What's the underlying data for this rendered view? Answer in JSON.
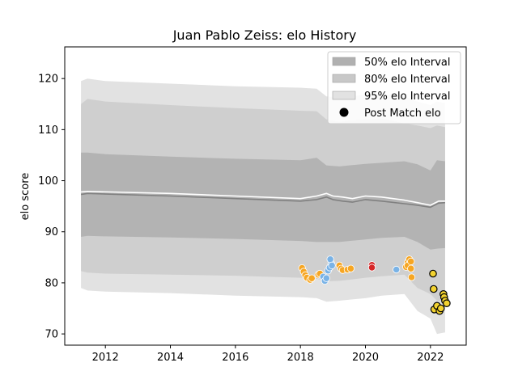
{
  "chart_data": {
    "type": "line",
    "title": "Juan Pablo Zeiss: elo History",
    "xlabel": "",
    "ylabel": "elo score",
    "xlim": [
      2010.75,
      2023.1
    ],
    "ylim": [
      67.8,
      126.2
    ],
    "x_ticks": [
      2012,
      2014,
      2016,
      2018,
      2020,
      2022
    ],
    "y_ticks": [
      70,
      80,
      90,
      100,
      110,
      120
    ],
    "grid": false,
    "legend_position": "top-right",
    "legend": [
      {
        "label": "50% elo Interval",
        "kind": "band",
        "color": "#b0b0b0"
      },
      {
        "label": "80% elo Interval",
        "kind": "band",
        "color": "#c8c8c8"
      },
      {
        "label": "95% elo Interval",
        "kind": "band",
        "color": "#e2e2e2"
      },
      {
        "label": "Post Match elo",
        "kind": "marker",
        "color": "#000000"
      }
    ],
    "band_colors": {
      "b95": "#e2e2e2",
      "b80": "#cfcfcf",
      "b50": "#b3b3b3"
    },
    "x": [
      2011.25,
      2011.45,
      2012.0,
      2014.0,
      2016.0,
      2018.0,
      2018.5,
      2018.8,
      2019.2,
      2019.5,
      2020.0,
      2020.5,
      2021.2,
      2021.6,
      2022.0,
      2022.2,
      2022.45
    ],
    "bands": {
      "upper95": [
        119.5,
        120.0,
        119.5,
        119.0,
        118.5,
        118.2,
        118.0,
        116.5,
        116.3,
        116.5,
        116.8,
        117.0,
        116.5,
        115.5,
        114.8,
        115.5,
        115.2
      ],
      "upper80": [
        115.0,
        116.0,
        115.5,
        114.8,
        114.2,
        113.7,
        113.6,
        112.0,
        111.5,
        111.8,
        112.0,
        112.2,
        111.2,
        110.8,
        110.3,
        110.8,
        110.5
      ],
      "upper50": [
        105.5,
        105.5,
        105.2,
        104.7,
        104.3,
        104.0,
        104.5,
        103.0,
        102.8,
        103.0,
        103.3,
        103.5,
        103.8,
        103.2,
        102.0,
        104.0,
        103.8
      ],
      "lower50": [
        89.0,
        89.2,
        89.1,
        88.9,
        88.6,
        88.2,
        88.0,
        88.0,
        88.0,
        88.2,
        88.5,
        88.8,
        89.0,
        88.0,
        86.5,
        86.7,
        86.8
      ],
      "lower80": [
        82.3,
        82.0,
        81.8,
        81.6,
        81.4,
        81.0,
        80.8,
        80.3,
        80.4,
        80.6,
        81.0,
        81.3,
        81.6,
        79.0,
        77.8,
        76.5,
        76.3
      ],
      "lower95": [
        79.0,
        78.5,
        78.3,
        78.0,
        77.5,
        77.2,
        77.0,
        76.3,
        76.5,
        76.7,
        77.0,
        77.5,
        77.8,
        74.5,
        73.0,
        70.0,
        70.3
      ]
    },
    "series": [
      {
        "x": [
          2011.25,
          2011.45,
          2014.0,
          2016.0,
          2018.0,
          2018.5,
          2018.8,
          2019.0,
          2019.3,
          2019.6,
          2020.0,
          2020.5,
          2021.2,
          2021.6,
          2022.0,
          2022.25,
          2022.45
        ],
        "values": [
          97.8,
          97.9,
          97.5,
          97.0,
          96.5,
          97.0,
          97.5,
          97.0,
          96.8,
          96.5,
          97.0,
          96.8,
          96.2,
          95.7,
          95.2,
          96.0,
          96.0
        ],
        "color": "#ffffff",
        "width": 1.6
      },
      {
        "x": [
          2011.25,
          2011.45,
          2014.0,
          2016.0,
          2018.0,
          2018.5,
          2018.8,
          2019.0,
          2019.3,
          2019.6,
          2020.0,
          2020.5,
          2021.2,
          2021.6,
          2022.0,
          2022.25,
          2022.45
        ],
        "values": [
          97.3,
          97.5,
          97.0,
          96.5,
          96.0,
          96.3,
          96.8,
          96.3,
          96.0,
          95.8,
          96.3,
          96.0,
          95.5,
          95.2,
          94.8,
          95.6,
          95.7
        ],
        "color": "#808080",
        "width": 1.6
      }
    ],
    "points": [
      {
        "x": 2018.05,
        "y": 82.9,
        "fill": "#f6a623"
      },
      {
        "x": 2018.1,
        "y": 82.2,
        "fill": "#f6a623"
      },
      {
        "x": 2018.15,
        "y": 81.5,
        "fill": "#f6a623"
      },
      {
        "x": 2018.2,
        "y": 81.0,
        "fill": "#f6a623"
      },
      {
        "x": 2018.3,
        "y": 80.6,
        "fill": "#f6a623"
      },
      {
        "x": 2018.35,
        "y": 80.9,
        "fill": "#f6a623"
      },
      {
        "x": 2018.55,
        "y": 81.6,
        "fill": "#f6a623"
      },
      {
        "x": 2018.6,
        "y": 81.8,
        "fill": "#f6a623"
      },
      {
        "x": 2018.7,
        "y": 81.2,
        "fill": "#7ab3e6"
      },
      {
        "x": 2018.75,
        "y": 80.4,
        "fill": "#7ab3e6"
      },
      {
        "x": 2018.8,
        "y": 80.9,
        "fill": "#7ab3e6"
      },
      {
        "x": 2018.85,
        "y": 82.4,
        "fill": "#7ab3e6"
      },
      {
        "x": 2018.9,
        "y": 83.0,
        "fill": "#7ab3e6"
      },
      {
        "x": 2018.95,
        "y": 83.8,
        "fill": "#7ab3e6"
      },
      {
        "x": 2018.92,
        "y": 84.6,
        "fill": "#7ab3e6"
      },
      {
        "x": 2018.97,
        "y": 83.4,
        "fill": "#7ab3e6"
      },
      {
        "x": 2019.2,
        "y": 83.4,
        "fill": "#f6a623"
      },
      {
        "x": 2019.25,
        "y": 82.8,
        "fill": "#f6a623"
      },
      {
        "x": 2019.3,
        "y": 82.5,
        "fill": "#f6a623"
      },
      {
        "x": 2019.45,
        "y": 82.6,
        "fill": "#f6a623"
      },
      {
        "x": 2019.55,
        "y": 82.8,
        "fill": "#f6a623"
      },
      {
        "x": 2020.2,
        "y": 83.5,
        "fill": "#d62728"
      },
      {
        "x": 2020.2,
        "y": 83.0,
        "fill": "#d62728"
      },
      {
        "x": 2020.95,
        "y": 82.6,
        "fill": "#7ab3e6"
      },
      {
        "x": 2021.25,
        "y": 83.1,
        "fill": "#f6a623"
      },
      {
        "x": 2021.3,
        "y": 84.0,
        "fill": "#f6a623"
      },
      {
        "x": 2021.35,
        "y": 84.6,
        "fill": "#f6a623"
      },
      {
        "x": 2021.3,
        "y": 83.4,
        "fill": "#f6a623"
      },
      {
        "x": 2021.4,
        "y": 82.8,
        "fill": "#f6a623"
      },
      {
        "x": 2021.4,
        "y": 84.2,
        "fill": "#f6a623"
      },
      {
        "x": 2021.42,
        "y": 81.1,
        "fill": "#f6a623"
      },
      {
        "x": 2022.08,
        "y": 81.8,
        "fill": "#f2d230"
      },
      {
        "x": 2022.1,
        "y": 78.8,
        "fill": "#f2d230"
      },
      {
        "x": 2022.12,
        "y": 74.8,
        "fill": "#f2d230"
      },
      {
        "x": 2022.2,
        "y": 75.5,
        "fill": "#f2d230"
      },
      {
        "x": 2022.28,
        "y": 74.5,
        "fill": "#f2d230"
      },
      {
        "x": 2022.32,
        "y": 75.0,
        "fill": "#f2d230"
      },
      {
        "x": 2022.4,
        "y": 77.8,
        "fill": "#f2d230"
      },
      {
        "x": 2022.42,
        "y": 77.2,
        "fill": "#f2d230"
      },
      {
        "x": 2022.45,
        "y": 76.5,
        "fill": "#f2d230"
      },
      {
        "x": 2022.5,
        "y": 76.0,
        "fill": "#f2d230"
      }
    ]
  }
}
